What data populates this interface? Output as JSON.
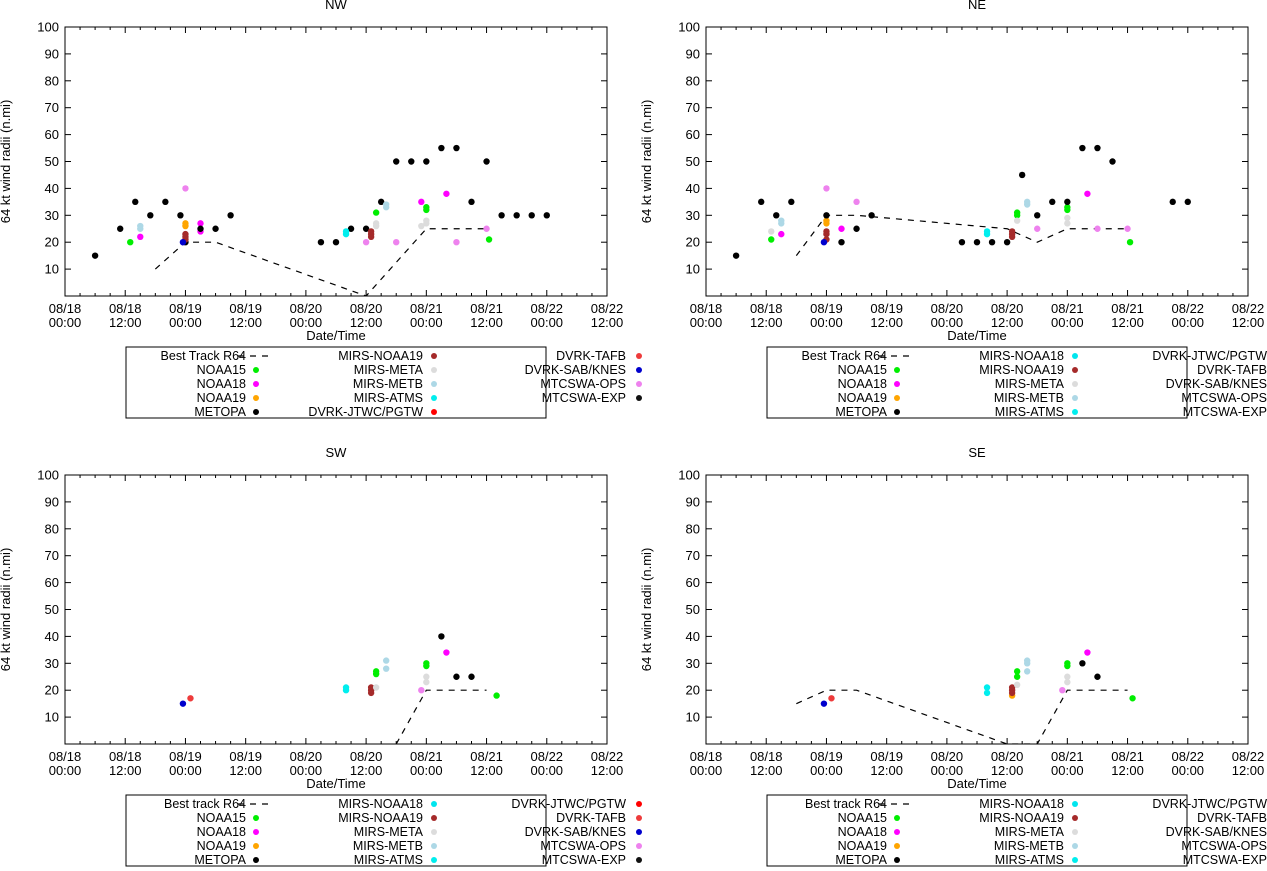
{
  "figure": {
    "xlabel": "Date/Time",
    "ylabel": "64 kt wind radii (n.mi)"
  },
  "axis": {
    "ylim": [
      0,
      100
    ],
    "yticks": [
      10,
      20,
      30,
      40,
      50,
      60,
      70,
      80,
      90,
      100
    ],
    "xlim_hours": [
      0,
      108
    ],
    "xticks": [
      {
        "h": 0,
        "date": "08/18",
        "time": "00:00"
      },
      {
        "h": 12,
        "date": "08/18",
        "time": "12:00"
      },
      {
        "h": 24,
        "date": "08/19",
        "time": "00:00"
      },
      {
        "h": 36,
        "date": "08/19",
        "time": "12:00"
      },
      {
        "h": 48,
        "date": "08/20",
        "time": "00:00"
      },
      {
        "h": 60,
        "date": "08/20",
        "time": "12:00"
      },
      {
        "h": 72,
        "date": "08/21",
        "time": "00:00"
      },
      {
        "h": 84,
        "date": "08/21",
        "time": "12:00"
      },
      {
        "h": 96,
        "date": "08/22",
        "time": "00:00"
      },
      {
        "h": 108,
        "date": "08/22",
        "time": "12:00"
      }
    ]
  },
  "colors": {
    "NOAA15": "#00ee00",
    "NOAA18": "#ff00ff",
    "NOAA19": "#ffa500",
    "METOPA": "#000000",
    "MIRS-NOAA18": "#00e5ee",
    "MIRS-NOAA19": "#a52a2a",
    "MIRS-META": "#dcdcdc",
    "MIRS-METB": "#add8e6",
    "MIRS-ATMS": "#00eeee",
    "DVRK-JTWC/PGTW": "#ff0000",
    "DVRK-TAFB": "#ee3b3b",
    "DVRK-SAB/KNES": "#0000cd",
    "MTCSWA-OPS": "#ee82ee",
    "MTCSWA-EXP": "#111111"
  },
  "chart_data": [
    {
      "type": "scatter",
      "title": "NW",
      "xlabel": "Date/Time",
      "ylabel": "64 kt wind radii (n.mi)",
      "ylim": [
        0,
        100
      ],
      "legend": [
        {
          "label": "Best Track R64",
          "key": "line"
        },
        {
          "label": "NOAA15",
          "key": "NOAA15"
        },
        {
          "label": "NOAA18",
          "key": "NOAA18"
        },
        {
          "label": "NOAA19",
          "key": "NOAA19"
        },
        {
          "label": "METOPA",
          "key": "METOPA"
        },
        {
          "label": "MIRS-NOAA19",
          "key": "MIRS-NOAA19"
        },
        {
          "label": "MIRS-META",
          "key": "MIRS-META"
        },
        {
          "label": "MIRS-METB",
          "key": "MIRS-METB"
        },
        {
          "label": "MIRS-ATMS",
          "key": "MIRS-ATMS"
        },
        {
          "label": "DVRK-JTWC/PGTW",
          "key": "DVRK-JTWC/PGTW"
        },
        {
          "label": "DVRK-TAFB",
          "key": "DVRK-TAFB"
        },
        {
          "label": "DVRK-SAB/KNES",
          "key": "DVRK-SAB/KNES"
        },
        {
          "label": "MTCSWA-OPS",
          "key": "MTCSWA-OPS"
        },
        {
          "label": "MTCSWA-EXP",
          "key": "MTCSWA-EXP"
        }
      ],
      "best_track": {
        "x": [
          18,
          24,
          30,
          60,
          72,
          84
        ],
        "y": [
          10,
          20,
          20,
          0,
          25,
          25
        ]
      },
      "series": [
        {
          "key": "NOAA15",
          "x": [
            13,
            62,
            72,
            72,
            84.5
          ],
          "y": [
            20,
            31,
            32,
            33,
            21
          ]
        },
        {
          "key": "NOAA18",
          "x": [
            15,
            27,
            71,
            76,
            27
          ],
          "y": [
            22,
            27,
            35,
            38,
            24
          ]
        },
        {
          "key": "NOAA19",
          "x": [
            24,
            24
          ],
          "y": [
            26,
            27
          ]
        },
        {
          "key": "METOPA",
          "x": [
            6,
            11,
            14,
            17,
            20,
            23,
            24,
            27,
            30,
            33,
            51,
            54,
            57,
            60,
            63,
            66,
            69,
            72,
            75,
            78,
            81,
            84,
            87,
            90,
            93,
            96
          ],
          "y": [
            15,
            25,
            35,
            30,
            35,
            30,
            20,
            25,
            25,
            30,
            20,
            20,
            25,
            25,
            35,
            50,
            50,
            50,
            55,
            55,
            35,
            50,
            30,
            30,
            30,
            30
          ]
        },
        {
          "key": "MIRS-NOAA19",
          "x": [
            24,
            24,
            24,
            61,
            61,
            61
          ],
          "y": [
            21,
            22,
            23,
            22,
            23,
            24
          ]
        },
        {
          "key": "MIRS-META",
          "x": [
            62,
            62,
            71,
            72,
            72
          ],
          "y": [
            26,
            27,
            26,
            27,
            28
          ]
        },
        {
          "key": "MIRS-METB",
          "x": [
            15,
            15,
            64,
            64
          ],
          "y": [
            25,
            26,
            33,
            34
          ]
        },
        {
          "key": "MIRS-ATMS",
          "x": [
            56,
            56
          ],
          "y": [
            23,
            24
          ]
        },
        {
          "key": "DVRK-SAB/KNES",
          "x": [
            23.5
          ],
          "y": [
            20
          ]
        },
        {
          "key": "MTCSWA-OPS",
          "x": [
            24,
            60,
            66,
            78,
            84
          ],
          "y": [
            40,
            20,
            20,
            20,
            25
          ]
        },
        {
          "key": "MTCSWA-EXP",
          "x": [],
          "y": []
        }
      ]
    },
    {
      "type": "scatter",
      "title": "NE",
      "xlabel": "Date/Time",
      "ylabel": "64 kt wind radii (n.mi)",
      "ylim": [
        0,
        100
      ],
      "legend": [
        {
          "label": "Best Track R64",
          "key": "line"
        },
        {
          "label": "NOAA15",
          "key": "NOAA15"
        },
        {
          "label": "NOAA18",
          "key": "NOAA18"
        },
        {
          "label": "NOAA19",
          "key": "NOAA19"
        },
        {
          "label": "METOPA",
          "key": "METOPA"
        },
        {
          "label": "MIRS-NOAA18",
          "key": "MIRS-NOAA18"
        },
        {
          "label": "MIRS-NOAA19",
          "key": "MIRS-NOAA19"
        },
        {
          "label": "MIRS-META",
          "key": "MIRS-META"
        },
        {
          "label": "MIRS-METB",
          "key": "MIRS-METB"
        },
        {
          "label": "MIRS-ATMS",
          "key": "MIRS-ATMS"
        },
        {
          "label": "DVRK-JTWC/PGTW",
          "key": "DVRK-JTWC/PGTW"
        },
        {
          "label": "DVRK-TAFB",
          "key": "DVRK-TAFB"
        },
        {
          "label": "DVRK-SAB/KNES",
          "key": "DVRK-SAB/KNES"
        },
        {
          "label": "MTCSWA-OPS",
          "key": "MTCSWA-OPS"
        },
        {
          "label": "MTCSWA-EXP",
          "key": "MTCSWA-EXP"
        }
      ],
      "best_track": {
        "x": [
          18,
          24,
          30,
          60,
          66,
          72,
          84
        ],
        "y": [
          15,
          30,
          30,
          25,
          20,
          25,
          25
        ]
      },
      "series": [
        {
          "key": "NOAA15",
          "x": [
            13,
            62,
            62,
            72,
            72,
            84.5
          ],
          "y": [
            21,
            30,
            31,
            32,
            33,
            20
          ]
        },
        {
          "key": "NOAA18",
          "x": [
            15,
            27,
            76
          ],
          "y": [
            23,
            25,
            38
          ]
        },
        {
          "key": "NOAA19",
          "x": [
            24,
            24
          ],
          "y": [
            27,
            28
          ]
        },
        {
          "key": "METOPA",
          "x": [
            6,
            11,
            14,
            17,
            24,
            27,
            30,
            33,
            51,
            54,
            57,
            60,
            63,
            66,
            69,
            72,
            75,
            78,
            81,
            93,
            96
          ],
          "y": [
            15,
            35,
            30,
            35,
            30,
            20,
            25,
            30,
            20,
            20,
            20,
            20,
            45,
            30,
            35,
            35,
            55,
            55,
            50,
            35,
            35
          ]
        },
        {
          "key": "MIRS-NOAA19",
          "x": [
            24,
            24,
            24,
            61,
            61,
            61
          ],
          "y": [
            21,
            23,
            24,
            22,
            23,
            24
          ]
        },
        {
          "key": "MIRS-META",
          "x": [
            13,
            62,
            72,
            72
          ],
          "y": [
            24,
            28,
            27,
            29
          ]
        },
        {
          "key": "MIRS-METB",
          "x": [
            15,
            15,
            64,
            64
          ],
          "y": [
            27,
            28,
            34,
            35
          ]
        },
        {
          "key": "MIRS-ATMS",
          "x": [
            56,
            56
          ],
          "y": [
            23,
            24
          ]
        },
        {
          "key": "DVRK-SAB/KNES",
          "x": [
            23.5
          ],
          "y": [
            20
          ]
        },
        {
          "key": "MTCSWA-OPS",
          "x": [
            24,
            30,
            66,
            78,
            84
          ],
          "y": [
            40,
            35,
            25,
            25,
            25
          ]
        },
        {
          "key": "MTCSWA-EXP",
          "x": [],
          "y": []
        }
      ]
    },
    {
      "type": "scatter",
      "title": "SW",
      "xlabel": "Date/Time",
      "ylabel": "64 kt wind radii (n.mi)",
      "ylim": [
        0,
        100
      ],
      "legend": [
        {
          "label": "Best track R64",
          "key": "line"
        },
        {
          "label": "NOAA15",
          "key": "NOAA15"
        },
        {
          "label": "NOAA18",
          "key": "NOAA18"
        },
        {
          "label": "NOAA19",
          "key": "NOAA19"
        },
        {
          "label": "METOPA",
          "key": "METOPA"
        },
        {
          "label": "MIRS-NOAA18",
          "key": "MIRS-NOAA18"
        },
        {
          "label": "MIRS-NOAA19",
          "key": "MIRS-NOAA19"
        },
        {
          "label": "MIRS-META",
          "key": "MIRS-META"
        },
        {
          "label": "MIRS-METB",
          "key": "MIRS-METB"
        },
        {
          "label": "MIRS-ATMS",
          "key": "MIRS-ATMS"
        },
        {
          "label": "DVRK-JTWC/PGTW",
          "key": "DVRK-JTWC/PGTW"
        },
        {
          "label": "DVRK-TAFB",
          "key": "DVRK-TAFB"
        },
        {
          "label": "DVRK-SAB/KNES",
          "key": "DVRK-SAB/KNES"
        },
        {
          "label": "MTCSWA-OPS",
          "key": "MTCSWA-OPS"
        },
        {
          "label": "MTCSWA-EXP",
          "key": "MTCSWA-EXP"
        }
      ],
      "best_track": {
        "x": [
          66,
          72,
          84
        ],
        "y": [
          0,
          20,
          20
        ]
      },
      "series": [
        {
          "key": "NOAA15",
          "x": [
            62,
            62,
            72,
            72,
            86
          ],
          "y": [
            26,
            27,
            29,
            30,
            18
          ]
        },
        {
          "key": "NOAA18",
          "x": [
            76
          ],
          "y": [
            34
          ]
        },
        {
          "key": "METOPA",
          "x": [
            75,
            78,
            81
          ],
          "y": [
            40,
            25,
            25
          ]
        },
        {
          "key": "MIRS-NOAA19",
          "x": [
            61,
            61,
            61
          ],
          "y": [
            19,
            20,
            21
          ]
        },
        {
          "key": "MIRS-META",
          "x": [
            62,
            72,
            72
          ],
          "y": [
            21,
            23,
            25
          ]
        },
        {
          "key": "MIRS-METB",
          "x": [
            64,
            64
          ],
          "y": [
            28,
            31
          ]
        },
        {
          "key": "MIRS-ATMS",
          "x": [
            56,
            56
          ],
          "y": [
            20,
            21
          ]
        },
        {
          "key": "DVRK-SAB/KNES",
          "x": [
            23.5
          ],
          "y": [
            15
          ]
        },
        {
          "key": "DVRK-TAFB",
          "x": [
            25
          ],
          "y": [
            17
          ]
        },
        {
          "key": "MTCSWA-OPS",
          "x": [
            71
          ],
          "y": [
            20
          ]
        },
        {
          "key": "MTCSWA-EXP",
          "x": [],
          "y": []
        }
      ]
    },
    {
      "type": "scatter",
      "title": "SE",
      "xlabel": "Date/Time",
      "ylabel": "64 kt wind radii (n.mi)",
      "ylim": [
        0,
        100
      ],
      "legend": [
        {
          "label": "Best track R64",
          "key": "line"
        },
        {
          "label": "NOAA15",
          "key": "NOAA15"
        },
        {
          "label": "NOAA18",
          "key": "NOAA18"
        },
        {
          "label": "NOAA19",
          "key": "NOAA19"
        },
        {
          "label": "METOPA",
          "key": "METOPA"
        },
        {
          "label": "MIRS-NOAA18",
          "key": "MIRS-NOAA18"
        },
        {
          "label": "MIRS-NOAA19",
          "key": "MIRS-NOAA19"
        },
        {
          "label": "MIRS-META",
          "key": "MIRS-META"
        },
        {
          "label": "MIRS-METB",
          "key": "MIRS-METB"
        },
        {
          "label": "MIRS-ATMS",
          "key": "MIRS-ATMS"
        },
        {
          "label": "DVRK-JTWC/PGTW",
          "key": "DVRK-JTWC/PGTW"
        },
        {
          "label": "DVRK-TAFB",
          "key": "DVRK-TAFB"
        },
        {
          "label": "DVRK-SAB/KNES",
          "key": "DVRK-SAB/KNES"
        },
        {
          "label": "MTCSWA-OPS",
          "key": "MTCSWA-OPS"
        },
        {
          "label": "MTCSWA-EXP",
          "key": "MTCSWA-EXP"
        }
      ],
      "best_track": {
        "x": [
          18,
          24,
          30,
          60,
          66,
          72,
          84
        ],
        "y": [
          15,
          20,
          20,
          0,
          0,
          20,
          20
        ]
      },
      "series": [
        {
          "key": "NOAA15",
          "x": [
            62,
            62,
            72,
            72,
            85
          ],
          "y": [
            25,
            27,
            29,
            30,
            17
          ]
        },
        {
          "key": "NOAA18",
          "x": [
            76
          ],
          "y": [
            34
          ]
        },
        {
          "key": "NOAA19",
          "x": [
            61
          ],
          "y": [
            18
          ]
        },
        {
          "key": "METOPA",
          "x": [
            75,
            78
          ],
          "y": [
            30,
            25
          ]
        },
        {
          "key": "MIRS-NOAA19",
          "x": [
            61,
            61,
            61
          ],
          "y": [
            19,
            20,
            21
          ]
        },
        {
          "key": "MIRS-META",
          "x": [
            62,
            72,
            72
          ],
          "y": [
            22,
            23,
            25
          ]
        },
        {
          "key": "MIRS-METB",
          "x": [
            64,
            64,
            64
          ],
          "y": [
            27,
            30,
            31
          ]
        },
        {
          "key": "MIRS-ATMS",
          "x": [
            56,
            56
          ],
          "y": [
            19,
            21
          ]
        },
        {
          "key": "DVRK-SAB/KNES",
          "x": [
            23.5
          ],
          "y": [
            15
          ]
        },
        {
          "key": "DVRK-TAFB",
          "x": [
            25
          ],
          "y": [
            17
          ]
        },
        {
          "key": "MTCSWA-OPS",
          "x": [
            71
          ],
          "y": [
            20
          ]
        },
        {
          "key": "MTCSWA-EXP",
          "x": [],
          "y": []
        }
      ]
    }
  ]
}
